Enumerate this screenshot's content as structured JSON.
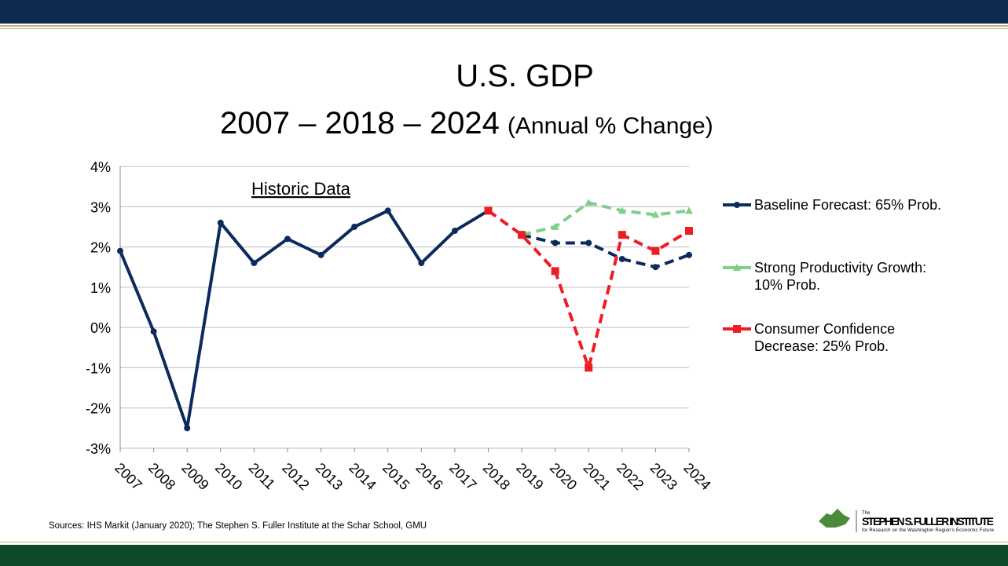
{
  "chart_data": {
    "type": "line",
    "title": "U.S. GDP",
    "subtitle": "2007 – 2018 – 2024",
    "subtitle_note": "(Annual % Change)",
    "annotation": "Historic Data",
    "source": "Sources: IHS Markit (January 2020); The Stephen S. Fuller Institute at the Schar School, GMU",
    "categories": [
      "2007",
      "2008",
      "2009",
      "2010",
      "2011",
      "2012",
      "2013",
      "2014",
      "2015",
      "2016",
      "2017",
      "2018",
      "2019",
      "2020",
      "2021",
      "2022",
      "2023",
      "2024"
    ],
    "ylim": [
      -3,
      4
    ],
    "yticks": [
      {
        "value": -3,
        "label": "-3%"
      },
      {
        "value": -2,
        "label": "-2%"
      },
      {
        "value": -1,
        "label": "-1%"
      },
      {
        "value": 0,
        "label": "0%"
      },
      {
        "value": 1,
        "label": "1%"
      },
      {
        "value": 2,
        "label": "2%"
      },
      {
        "value": 3,
        "label": "3%"
      },
      {
        "value": 4,
        "label": "4%"
      }
    ],
    "grid": true,
    "legend": "right",
    "series": [
      {
        "name": "Baseline Forecast: 65% Prob.",
        "color": "#0d2a5c",
        "marker": "circle",
        "dash_from": "2019",
        "values": [
          1.9,
          -0.1,
          -2.5,
          2.6,
          1.6,
          2.2,
          1.8,
          2.5,
          2.9,
          1.6,
          2.4,
          2.9,
          2.3,
          2.1,
          2.1,
          1.7,
          1.5,
          1.8
        ]
      },
      {
        "name": "Strong Productivity Growth:\n10% Prob.",
        "color": "#7fcf8a",
        "marker": "triangle",
        "dash_from": "2019",
        "values": [
          null,
          null,
          null,
          null,
          null,
          null,
          null,
          null,
          null,
          null,
          null,
          null,
          2.3,
          2.5,
          3.1,
          2.9,
          2.8,
          2.9
        ]
      },
      {
        "name": "Consumer Confidence\nDecrease: 25% Prob.",
        "color": "#ee1c25",
        "marker": "square",
        "dash_from": "2018",
        "values": [
          null,
          null,
          null,
          null,
          null,
          null,
          null,
          null,
          null,
          null,
          null,
          2.9,
          2.3,
          1.4,
          -1.0,
          2.3,
          1.9,
          2.4
        ]
      }
    ]
  },
  "logo": {
    "small": "The",
    "name": "STEPHEN S. FULLER INSTITUTE",
    "tagline": "for Research on the Washington Region's Economic Future"
  }
}
